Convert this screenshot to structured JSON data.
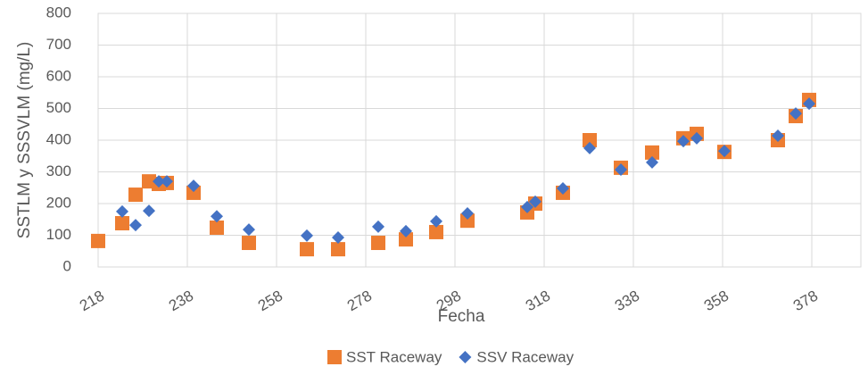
{
  "chart_data": {
    "type": "scatter",
    "x_label": "Fecha",
    "y_label": "SSTLM y SSSVLM (mg/L)",
    "xlim": [
      218,
      389
    ],
    "xticks": [
      218,
      238,
      258,
      278,
      298,
      318,
      338,
      358,
      378
    ],
    "ylim": [
      0,
      800
    ],
    "yticks": [
      0,
      100,
      200,
      300,
      400,
      500,
      600,
      700,
      800
    ],
    "grid": true,
    "legend": "bottom",
    "series": [
      {
        "name": "SST Raceway",
        "color": "#ed7d31",
        "marker": "square",
        "x": [
          218,
          223.4,
          226.4,
          229.4,
          231.6,
          233.4,
          239.4,
          244.6,
          251.8,
          264.8,
          271.8,
          280.8,
          287,
          293.8,
          300.8,
          314.2,
          316,
          322.2,
          328.2,
          335.2,
          342.2,
          349.2,
          352.2,
          358.4,
          370.4,
          374.4,
          377.4
        ],
        "values": [
          82,
          138,
          228,
          270,
          262,
          265,
          234,
          124,
          76,
          56,
          56,
          76,
          87,
          110,
          146,
          172,
          200,
          234,
          400,
          313,
          361,
          406,
          420,
          363,
          400,
          476,
          527
        ]
      },
      {
        "name": "SSV Raceway",
        "color": "#4472c4",
        "marker": "diamond",
        "x": [
          223.4,
          226.4,
          229.4,
          231.6,
          233.4,
          239.4,
          244.6,
          251.8,
          264.8,
          271.8,
          280.8,
          287,
          293.8,
          300.8,
          314.2,
          316,
          322.2,
          328.2,
          335.2,
          342.2,
          349.2,
          352.2,
          358.4,
          370.4,
          374.4,
          377.4
        ],
        "values": [
          175,
          132,
          177,
          270,
          270,
          256,
          160,
          118,
          99,
          93,
          127,
          113,
          144,
          169,
          189,
          206,
          248,
          375,
          307,
          330,
          397,
          406,
          366,
          414,
          484,
          515
        ]
      }
    ]
  }
}
